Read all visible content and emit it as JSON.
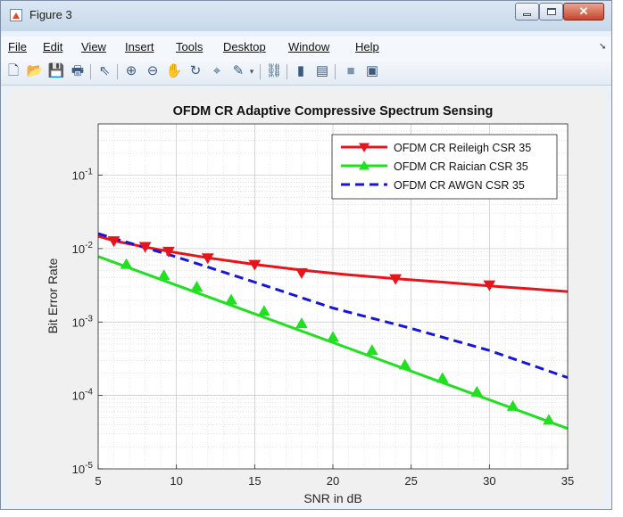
{
  "window": {
    "title": "Figure 3"
  },
  "menu": {
    "items": [
      "File",
      "Edit",
      "View",
      "Insert",
      "Tools",
      "Desktop",
      "Window",
      "Help"
    ]
  },
  "toolbar": {
    "icons": [
      "new-figure-icon",
      "open-file-icon",
      "save-icon",
      "print-icon",
      "pointer-icon",
      "zoom-in-icon",
      "zoom-out-icon",
      "pan-icon",
      "rotate-3d-icon",
      "data-cursor-icon",
      "brush-icon",
      "link-plot-icon",
      "colorbar-icon",
      "legend-icon",
      "hide-plot-tools-icon",
      "show-plot-tools-icon"
    ]
  },
  "colors": {
    "rayleigh": "#e8141b",
    "rician": "#21e021",
    "awgn": "#1616d8"
  },
  "chart_data": {
    "type": "line",
    "title": "OFDM CR Adaptive Compressive Spectrum Sensing",
    "xlabel": "SNR in dB",
    "ylabel": "Bit Error Rate",
    "xlim": [
      5,
      35
    ],
    "ylim": [
      1e-05,
      0.5
    ],
    "yscale": "log",
    "grid": true,
    "minor_grid": true,
    "legend_position": "top-right",
    "x_ticks": [
      5,
      10,
      15,
      20,
      25,
      30,
      35
    ],
    "y_ticks": [
      {
        "value": 1e-05,
        "exp": "-5"
      },
      {
        "value": 0.0001,
        "exp": "-4"
      },
      {
        "value": 0.001,
        "exp": "-3"
      },
      {
        "value": 0.01,
        "exp": "-2"
      },
      {
        "value": 0.1,
        "exp": "-1"
      }
    ],
    "series": [
      {
        "name": "OFDM CR Reileigh CSR 35",
        "color": "#e8141b",
        "dash": "solid",
        "marker": "triangle-down",
        "x": [
          5,
          6,
          8,
          10,
          12,
          15,
          18,
          21,
          24,
          27,
          30,
          33,
          35
        ],
        "y": [
          0.0148,
          0.0128,
          0.0105,
          0.0088,
          0.0075,
          0.0061,
          0.0051,
          0.0044,
          0.0039,
          0.0035,
          0.0031,
          0.0028,
          0.0026
        ],
        "marker_x": [
          6,
          8,
          9.5,
          12,
          15,
          18,
          24,
          30
        ],
        "marker_y": [
          0.0128,
          0.0107,
          0.0092,
          0.0075,
          0.0061,
          0.0047,
          0.0039,
          0.0032
        ]
      },
      {
        "name": "OFDM CR Raician  CSR 35",
        "color": "#21e021",
        "dash": "solid",
        "marker": "triangle-up",
        "x": [
          5,
          35
        ],
        "y": [
          0.0078,
          3.55e-05
        ],
        "marker_x": [
          6.8,
          9.2,
          11.3,
          13.5,
          15.6,
          18,
          20,
          22.5,
          24.6,
          27,
          29.2,
          31.5,
          33.8
        ],
        "marker_y": [
          0.0061,
          0.0043,
          0.003,
          0.002,
          0.0014,
          0.00095,
          0.00062,
          0.00041,
          0.00026,
          0.000171,
          0.000111,
          7.1e-05,
          4.6e-05
        ]
      },
      {
        "name": "OFDM CR AWGN CSR 35",
        "color": "#1616d8",
        "dash": "dashed",
        "marker": "none",
        "x": [
          5,
          10,
          15,
          20,
          25,
          30,
          35
        ],
        "y": [
          0.016,
          0.0077,
          0.0035,
          0.00155,
          0.00082,
          0.00041,
          0.000175
        ]
      }
    ]
  }
}
